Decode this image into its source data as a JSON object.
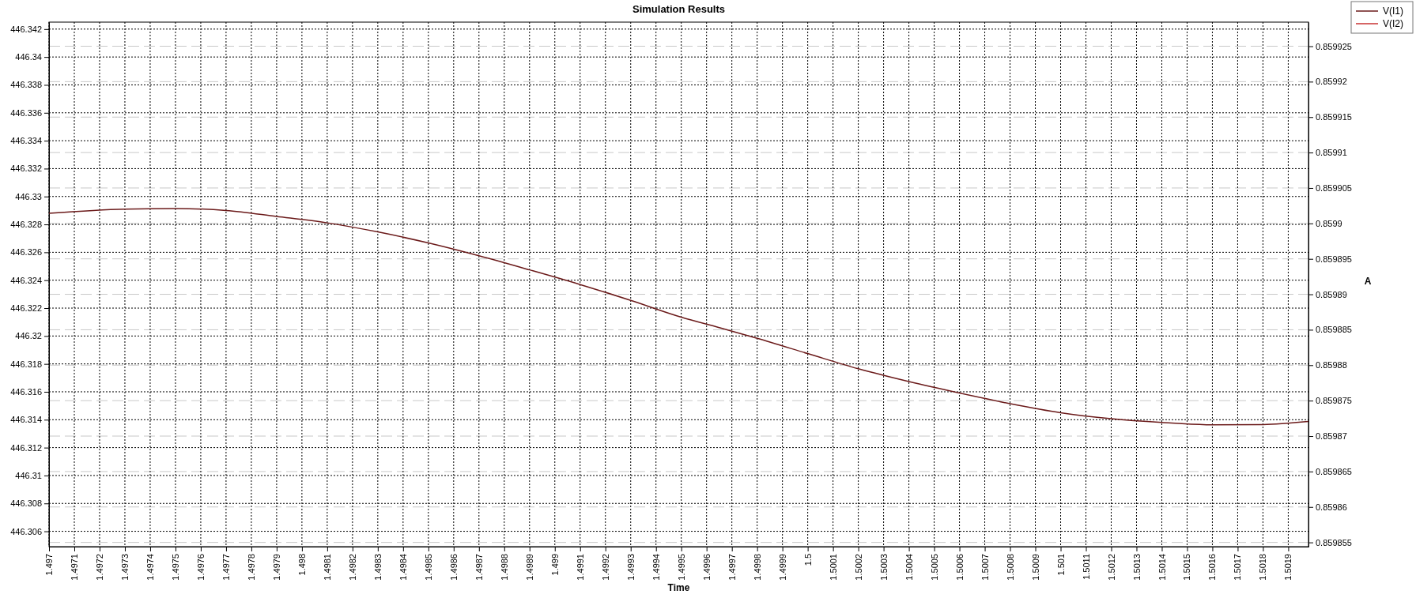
{
  "chart_data": {
    "type": "line",
    "title": "Simulation Results",
    "xlabel": "Time",
    "y2label": "A",
    "x": [
      1.497,
      1.4973,
      1.4975,
      1.4977,
      1.4979,
      1.4981,
      1.4983,
      1.4985,
      1.4987,
      1.4989,
      1.4991,
      1.4993,
      1.4995,
      1.49965,
      1.4998,
      1.5,
      1.5002,
      1.5004,
      1.5006,
      1.5008,
      1.501,
      1.5012,
      1.5014,
      1.5016,
      1.5018,
      1.50198
    ],
    "series": [
      {
        "name": "V(I1)",
        "color": "#6b1a1a",
        "values": [
          446.3288,
          446.3291,
          446.32914,
          446.329,
          446.32857,
          446.32811,
          446.32746,
          446.32667,
          446.32575,
          446.32474,
          446.32369,
          446.32255,
          446.32135,
          446.3206,
          446.31983,
          446.31874,
          446.31765,
          446.31673,
          446.31591,
          446.31515,
          446.3145,
          446.31407,
          446.3138,
          446.31363,
          446.31365,
          446.31387
        ]
      },
      {
        "name": "V(I2)",
        "color": "#c83232",
        "values": [
          null,
          null,
          null,
          null,
          null,
          null,
          null,
          null,
          null,
          null,
          null,
          null,
          null,
          null,
          null,
          null,
          null,
          null,
          null,
          null,
          null,
          null,
          null,
          null,
          null,
          null
        ]
      }
    ],
    "xlim": [
      1.497,
      1.50198
    ],
    "xticks": [
      1.497,
      1.4971,
      1.4972,
      1.4973,
      1.4974,
      1.4975,
      1.4976,
      1.4977,
      1.4978,
      1.4979,
      1.498,
      1.4981,
      1.4982,
      1.4983,
      1.4984,
      1.4985,
      1.4986,
      1.4987,
      1.4988,
      1.4989,
      1.499,
      1.4991,
      1.4992,
      1.4993,
      1.4994,
      1.4995,
      1.4996,
      1.4997,
      1.4998,
      1.4999,
      1.5,
      1.5001,
      1.5002,
      1.5003,
      1.5004,
      1.5005,
      1.5006,
      1.5007,
      1.5008,
      1.5009,
      1.501,
      1.5011,
      1.5012,
      1.5013,
      1.5014,
      1.5015,
      1.5016,
      1.5017,
      1.5018,
      1.5019
    ],
    "ylim": [
      446.3049,
      446.3425
    ],
    "yticks": [
      446.306,
      446.308,
      446.31,
      446.312,
      446.314,
      446.316,
      446.318,
      446.32,
      446.322,
      446.324,
      446.326,
      446.328,
      446.33,
      446.332,
      446.334,
      446.336,
      446.338,
      446.34,
      446.342
    ],
    "y2lim": [
      0.8598544,
      0.8599284
    ],
    "y2ticks": [
      0.859855,
      0.85986,
      0.859865,
      0.85987,
      0.859875,
      0.85988,
      0.859885,
      0.85989,
      0.859895,
      0.8599,
      0.859905,
      0.85991,
      0.859915,
      0.85992,
      0.859925
    ],
    "grid": true,
    "legend": "top right",
    "line_style": "solid",
    "marker": "none"
  }
}
